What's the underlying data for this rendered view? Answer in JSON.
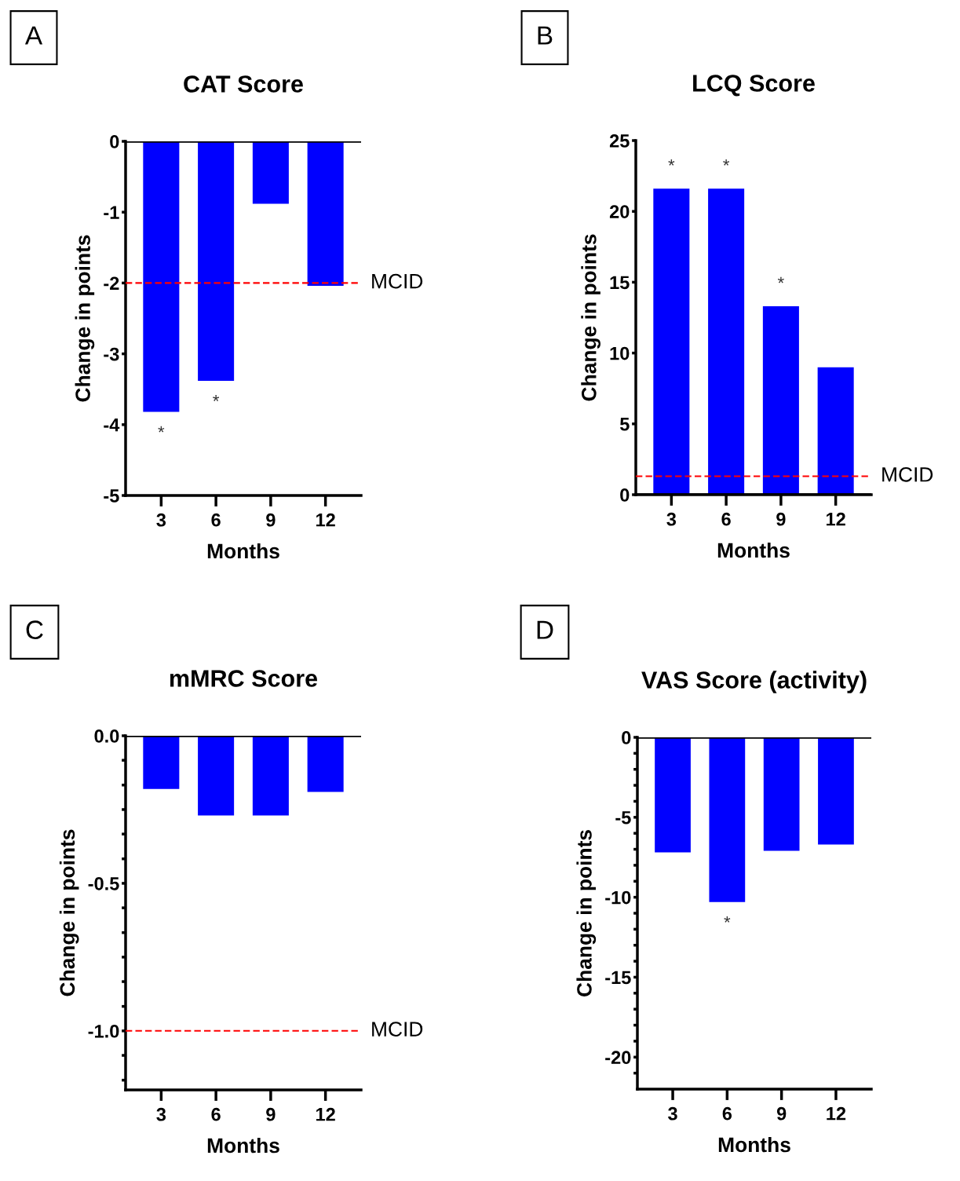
{
  "chart_data": [
    {
      "type": "bar",
      "title": "CAT Score",
      "xlabel": "Months",
      "ylabel": "Change in points",
      "categories": [
        "3",
        "6",
        "9",
        "12"
      ],
      "values": [
        -3.82,
        -3.38,
        -0.88,
        -2.04
      ],
      "color": "#0000ff",
      "ylim": [
        -5,
        0
      ],
      "yticks": [
        -5,
        -4,
        -3,
        -2,
        -1,
        0
      ],
      "ref_lines": [
        {
          "axis": "y",
          "value": -2,
          "label": "MCID",
          "color": "#ff0000",
          "line_style": "dashed"
        }
      ],
      "annotations": [
        "A",
        {
          "text": "*",
          "x": "3",
          "y": -3.82
        },
        {
          "text": "*",
          "x": "6",
          "y": -3.38
        }
      ],
      "grid": false
    },
    {
      "type": "bar",
      "title": "LCQ Score",
      "xlabel": "Months",
      "ylabel": "Change in points",
      "categories": [
        "3",
        "6",
        "9",
        "12"
      ],
      "values": [
        21.6,
        21.6,
        13.3,
        9.0
      ],
      "color": "#0000ff",
      "ylim": [
        0,
        25
      ],
      "yticks": [
        0,
        5,
        10,
        15,
        20,
        25
      ],
      "ref_lines": [
        {
          "axis": "y",
          "value": 1.3,
          "label": "MCID",
          "color": "#ff0000",
          "line_style": "dashed"
        }
      ],
      "annotations": [
        "B",
        {
          "text": "*",
          "x": "3",
          "y": 21.6
        },
        {
          "text": "*",
          "x": "6",
          "y": 21.6
        },
        {
          "text": "*",
          "x": "9",
          "y": 13.3
        }
      ],
      "grid": false
    },
    {
      "type": "bar",
      "title": "mMRC Score",
      "xlabel": "Months",
      "ylabel": "Change in points",
      "categories": [
        "3",
        "6",
        "9",
        "12"
      ],
      "values": [
        -0.18,
        -0.27,
        -0.27,
        -0.19
      ],
      "color": "#0000ff",
      "ylim": [
        -1.2,
        0
      ],
      "yticks": [
        {
          "value": -1.167,
          "label": null
        },
        {
          "value": -1.083,
          "label": null
        },
        {
          "value": -1.0,
          "label": "-1.0"
        },
        {
          "value": -0.917,
          "label": null
        },
        {
          "value": -0.833,
          "label": null
        },
        {
          "value": -0.75,
          "label": null
        },
        {
          "value": -0.667,
          "label": null
        },
        {
          "value": -0.583,
          "label": null
        },
        {
          "value": -0.5,
          "label": "-0.5"
        },
        {
          "value": -0.417,
          "label": null
        },
        {
          "value": -0.333,
          "label": null
        },
        {
          "value": -0.25,
          "label": null
        },
        {
          "value": -0.167,
          "label": null
        },
        {
          "value": -0.083,
          "label": null
        },
        {
          "value": 0,
          "label": "0.0"
        }
      ],
      "ref_lines": [
        {
          "axis": "y",
          "value": -1.0,
          "label": "MCID",
          "color": "#ff0000",
          "line_style": "dashed"
        }
      ],
      "annotations": [
        "C"
      ],
      "grid": false
    },
    {
      "type": "bar",
      "title": "VAS Score (activity)",
      "xlabel": "Months",
      "ylabel": "Change in points",
      "categories": [
        "3",
        "6",
        "9",
        "12"
      ],
      "values": [
        -7.2,
        -10.3,
        -7.1,
        -6.7
      ],
      "color": "#0000ff",
      "ylim": [
        -22,
        0
      ],
      "yticks": [
        {
          "value": -21,
          "label": null
        },
        -20,
        {
          "value": -19,
          "label": null
        },
        {
          "value": -18,
          "label": null
        },
        {
          "value": -17,
          "label": null
        },
        {
          "value": -16,
          "label": null
        },
        -15,
        {
          "value": -14,
          "label": null
        },
        {
          "value": -13,
          "label": null
        },
        {
          "value": -12,
          "label": null
        },
        {
          "value": -11,
          "label": null
        },
        -10,
        {
          "value": -9,
          "label": null
        },
        {
          "value": -8,
          "label": null
        },
        {
          "value": -7,
          "label": null
        },
        {
          "value": -6,
          "label": null
        },
        -5,
        {
          "value": -4,
          "label": null
        },
        {
          "value": -3,
          "label": null
        },
        {
          "value": -2,
          "label": null
        },
        {
          "value": -1,
          "label": null
        },
        0
      ],
      "annotations": [
        "D",
        {
          "text": "*",
          "x": "6",
          "y": -10.3
        }
      ],
      "grid": false
    }
  ]
}
